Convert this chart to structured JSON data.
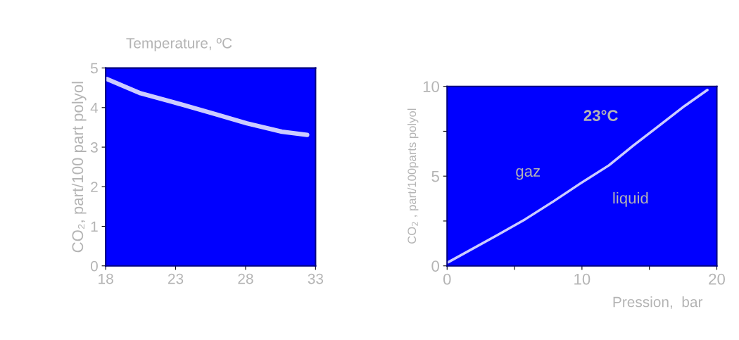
{
  "chart_data": [
    {
      "type": "line",
      "xlabel": "Temperature, ºC",
      "ylabel": "CO₂, part/100 part polyol",
      "x": [
        18.1,
        20.5,
        22.9,
        25.6,
        28.1,
        30.6,
        32.4
      ],
      "series": [
        {
          "color": "#ccccff",
          "values": [
            4.72,
            4.36,
            4.13,
            3.86,
            3.6,
            3.39,
            3.31
          ]
        }
      ],
      "xlim": [
        18,
        33
      ],
      "xticks": [
        18,
        23,
        28,
        33
      ],
      "ylim": [
        0,
        5
      ],
      "yticks": [
        0,
        1,
        2,
        3,
        4,
        5
      ],
      "grid": false,
      "legend": false,
      "marker": "none",
      "line_style": "solid"
    },
    {
      "type": "line",
      "xlabel": "Pression,  bar",
      "ylabel": "CO$_{2}$ , part/100parts polyol",
      "x": [
        0.07,
        3.7,
        5.8,
        7.9,
        9.9,
        12.0,
        13.8,
        15.7,
        17.6,
        19.3
      ],
      "series": [
        {
          "color": "#ccccff",
          "values": [
            0.2,
            1.7,
            2.6,
            3.6,
            4.6,
            5.6,
            6.7,
            7.8,
            8.9,
            9.8
          ]
        }
      ],
      "xlim": [
        0,
        20
      ],
      "xticks": [
        0,
        {
          "value": 5,
          "label": null
        },
        10,
        {
          "value": 15,
          "label": null
        },
        20
      ],
      "ylim": [
        0,
        10
      ],
      "yticks": [
        0,
        {
          "value": 2.5,
          "label": null
        },
        5,
        {
          "value": 7.5,
          "label": null
        },
        10
      ],
      "annotations": [
        "23°C",
        "gaz",
        "liquid"
      ],
      "grid": false,
      "legend": false,
      "marker": "none",
      "line_style": "solid"
    }
  ]
}
